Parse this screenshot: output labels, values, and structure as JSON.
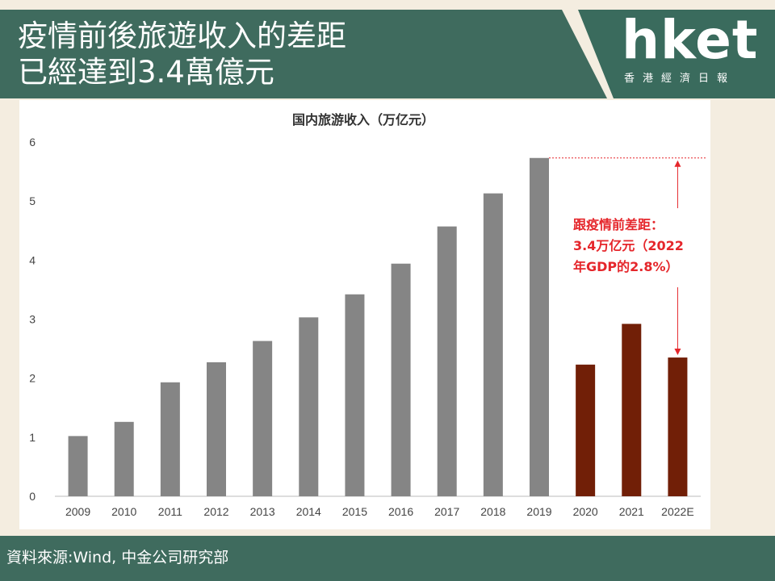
{
  "headline": {
    "line1": "疫情前後旅遊收入的差距",
    "line2": "已經達到3.4萬億元"
  },
  "logo": {
    "mark": "hket",
    "subtitle": "香港經濟日報"
  },
  "source": "資料來源:Wind, 中金公司研究部",
  "colors": {
    "banner": "#3f6b5e",
    "gray_bar": "#858585",
    "red_bar": "#711f07",
    "annotation": "#e5262b",
    "background": "#f4ede0"
  },
  "chart_data": {
    "type": "bar",
    "title": "国内旅游收入（万亿元）",
    "xlabel": "",
    "ylabel": "",
    "ylim": [
      0,
      6
    ],
    "yticks": [
      0,
      1,
      2,
      3,
      4,
      5,
      6
    ],
    "grid": false,
    "categories": [
      "2009",
      "2010",
      "2011",
      "2012",
      "2013",
      "2014",
      "2015",
      "2016",
      "2017",
      "2018",
      "2019",
      "2020",
      "2021",
      "2022E"
    ],
    "values": [
      1.02,
      1.26,
      1.93,
      2.27,
      2.63,
      3.03,
      3.42,
      3.94,
      4.57,
      5.13,
      5.73,
      2.23,
      2.92,
      2.35
    ],
    "bar_colors": [
      "gray",
      "gray",
      "gray",
      "gray",
      "gray",
      "gray",
      "gray",
      "gray",
      "gray",
      "gray",
      "gray",
      "red",
      "red",
      "red"
    ],
    "annotation": {
      "lines": [
        "跟疫情前差距：",
        "3.4万亿元（2022",
        "年GDP的2.8%）"
      ],
      "from_value": 5.73,
      "to_value": 2.35
    }
  }
}
